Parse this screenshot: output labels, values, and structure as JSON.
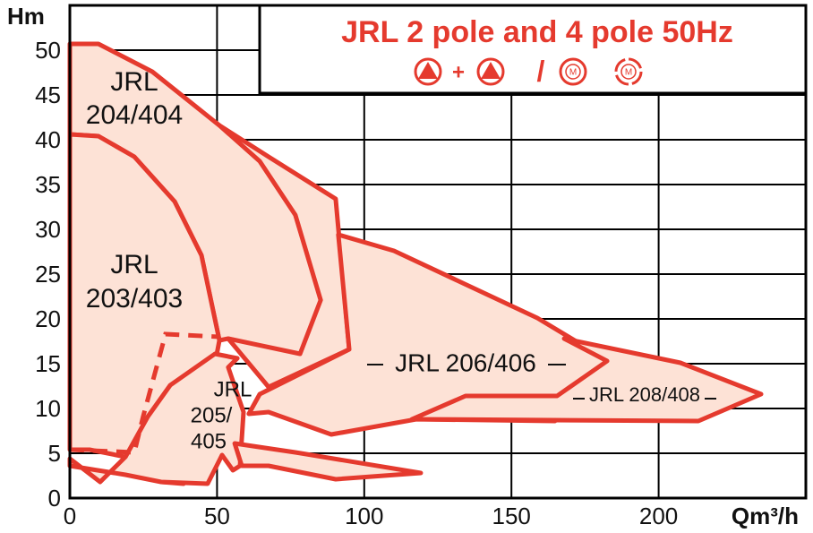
{
  "chart_data": {
    "type": "region",
    "title": "JRL 2 pole and 4 pole  50Hz",
    "title_symbols": [
      "+",
      "/",
      "M"
    ],
    "x_label": "Qm³/h",
    "y_label": "Hm",
    "xlim": [
      0,
      250
    ],
    "ylim": [
      0,
      55
    ],
    "xticks": [
      0,
      50,
      100,
      150,
      200
    ],
    "yticks": [
      0,
      5,
      10,
      15,
      20,
      25,
      30,
      35,
      40,
      45,
      50
    ],
    "grid": true,
    "color": "#e53a2e",
    "fill": "#fde2d6",
    "regions": [
      {
        "x": [
          50.8,
          67.5,
          90.3,
          94.9,
          67.5,
          53.8
        ],
        "y": [
          41.6,
          38.1,
          33.4,
          16.6,
          12.4,
          17.8
        ]
      },
      {
        "label": [
          "JRL",
          "204/404"
        ],
        "x": [
          0,
          9.7,
          28.0,
          50.8,
          64.5,
          76.6,
          85.2,
          78.2,
          53.8,
          50.8,
          44.7,
          35.6,
          21.9,
          9.7,
          0
        ],
        "y": [
          50.7,
          50.7,
          47.6,
          41.6,
          37.6,
          31.6,
          22.1,
          16.1,
          17.8,
          17.6,
          27.1,
          33.1,
          38.1,
          40.4,
          40.6
        ]
      },
      {
        "label": [
          "JRL",
          "203/403"
        ],
        "x": [
          0,
          9.7,
          21.9,
          35.6,
          44.7,
          50.8,
          46.2,
          38.6,
          31.0,
          21.9,
          6.7,
          0
        ],
        "y": [
          40.6,
          40.4,
          38.1,
          33.1,
          27.1,
          17.6,
          9.6,
          1.6,
          1.8,
          4.4,
          5.4,
          5.4
        ]
      },
      {
        "label": [
          "JRL",
          "205/",
          "405"
        ],
        "x": [
          0,
          10.3,
          18.9,
          26.5,
          34.1,
          49.3,
          56.9,
          53.8,
          59.0,
          57.8,
          55.4,
          51.7,
          46.8,
          31.0,
          18.9,
          0
        ],
        "y": [
          4.4,
          1.8,
          4.6,
          9.1,
          12.6,
          16.1,
          15.6,
          14.6,
          9.6,
          3.6,
          3.1,
          4.8,
          1.6,
          1.8,
          2.6,
          3.6
        ]
      },
      {
        "label": [
          "JRL 206/406"
        ],
        "x": [
          91.2,
          110.1,
          158.8,
          183.1,
          164.8,
          117.7,
          88.8,
          67.5,
          60.8,
          64.5,
          94.9
        ],
        "y": [
          29.4,
          27.6,
          20.1,
          15.3,
          8.6,
          8.8,
          7.1,
          9.6,
          9.4,
          11.6,
          16.6
        ]
      },
      {
        "label": [
          "JRL 208/408"
        ],
        "x": [
          167.9,
          207.4,
          234.8,
          213.5,
          116.2,
          134.4,
          165.5,
          182.5
        ],
        "y": [
          17.8,
          15.1,
          11.6,
          8.6,
          8.8,
          11.4,
          11.4,
          15.3
        ]
      },
      {
        "x": [
          56.0,
          76.6,
          119.2,
          90.3,
          67.5,
          58.4
        ],
        "y": [
          6.1,
          5.1,
          2.8,
          2.1,
          3.6,
          3.6
        ]
      }
    ],
    "dashed": {
      "x": [
        0,
        21.9,
        24.9,
        32.5,
        50.8
      ],
      "y": [
        5.4,
        5.1,
        9.1,
        18.3,
        18.0
      ]
    }
  }
}
